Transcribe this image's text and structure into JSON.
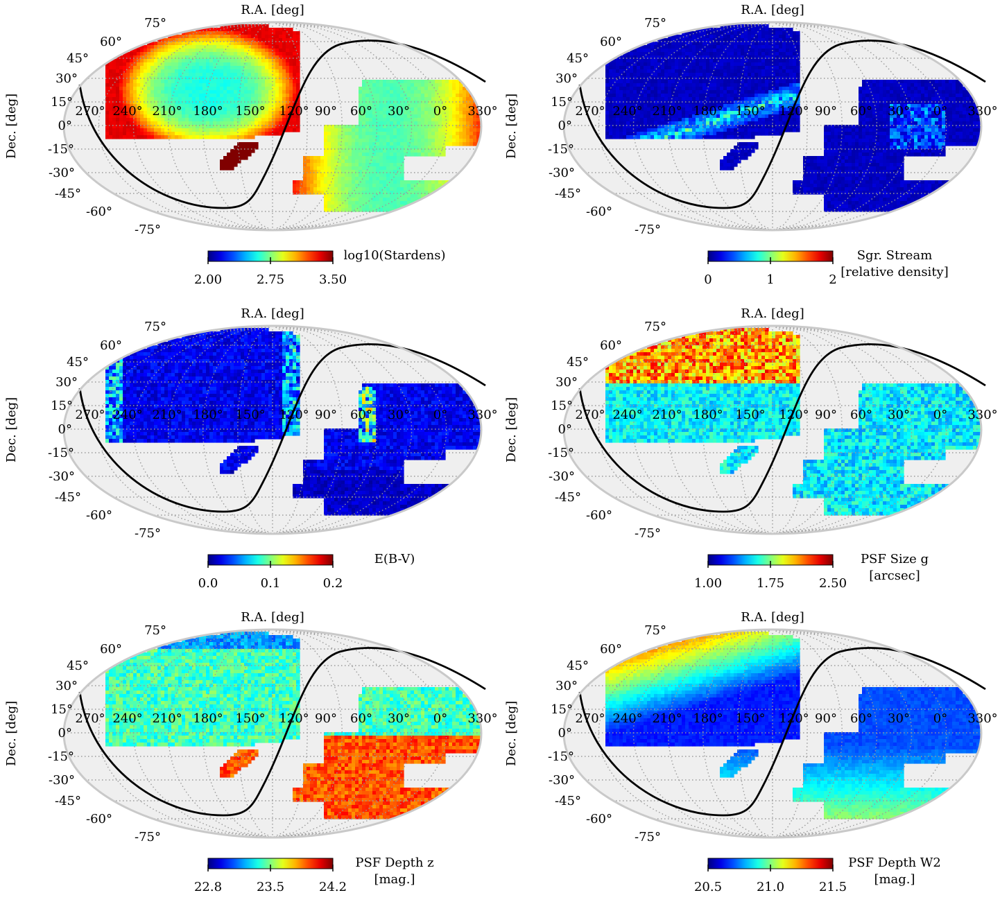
{
  "figure": {
    "colors": {
      "sphere_fill": "#efefef",
      "sphere_edge": "#c9c9c9",
      "grid": "#9a9a9a",
      "galactic_plane": "#000000"
    }
  },
  "chart_data": [
    {
      "type": "heatmap",
      "projection": "mollweide",
      "title": "R.A. [deg]",
      "xlabel": "R.A. [deg]",
      "ylabel": "Dec. [deg]",
      "ra_tick_labels": [
        "270°",
        "240°",
        "210°",
        "180°",
        "150°",
        "120°",
        "90°",
        "60°",
        "30°",
        "0°",
        "330°"
      ],
      "dec_tick_labels": [
        "75°",
        "60°",
        "45°",
        "30°",
        "15°",
        "0°",
        "-15°",
        "-30°",
        "-45°",
        "-60°",
        "-75°"
      ],
      "colorbar": {
        "label": [
          "log10(Stardens)"
        ],
        "ticks": [
          "2.00",
          "2.75",
          "3.50"
        ],
        "range": [
          2.0,
          3.5
        ],
        "colormap": "jet"
      },
      "map_pattern": "stardens"
    },
    {
      "type": "heatmap",
      "projection": "mollweide",
      "title": "R.A. [deg]",
      "xlabel": "R.A. [deg]",
      "ylabel": "Dec. [deg]",
      "ra_tick_labels": [
        "270°",
        "240°",
        "210°",
        "180°",
        "150°",
        "120°",
        "90°",
        "60°",
        "30°",
        "0°",
        "330°"
      ],
      "dec_tick_labels": [
        "75°",
        "60°",
        "45°",
        "30°",
        "15°",
        "0°",
        "-15°",
        "-30°",
        "-45°",
        "-60°",
        "-75°"
      ],
      "colorbar": {
        "label": [
          "Sgr. Stream",
          "[relative density]"
        ],
        "ticks": [
          "0",
          "1",
          "2"
        ],
        "range": [
          0,
          2
        ],
        "colormap": "jet"
      },
      "map_pattern": "sgr_stream"
    },
    {
      "type": "heatmap",
      "projection": "mollweide",
      "title": "R.A. [deg]",
      "xlabel": "R.A. [deg]",
      "ylabel": "Dec. [deg]",
      "ra_tick_labels": [
        "270°",
        "240°",
        "210°",
        "180°",
        "150°",
        "120°",
        "90°",
        "60°",
        "30°",
        "0°",
        "330°"
      ],
      "dec_tick_labels": [
        "75°",
        "60°",
        "45°",
        "30°",
        "15°",
        "0°",
        "-15°",
        "-30°",
        "-45°",
        "-60°",
        "-75°"
      ],
      "colorbar": {
        "label": [
          "E(B-V)"
        ],
        "ticks": [
          "0.0",
          "0.1",
          "0.2"
        ],
        "range": [
          0.0,
          0.2
        ],
        "colormap": "jet"
      },
      "map_pattern": "ebv"
    },
    {
      "type": "heatmap",
      "projection": "mollweide",
      "title": "R.A. [deg]",
      "xlabel": "R.A. [deg]",
      "ylabel": "Dec. [deg]",
      "ra_tick_labels": [
        "270°",
        "240°",
        "210°",
        "180°",
        "150°",
        "120°",
        "90°",
        "60°",
        "30°",
        "0°",
        "330°"
      ],
      "dec_tick_labels": [
        "75°",
        "60°",
        "45°",
        "30°",
        "15°",
        "0°",
        "-15°",
        "-30°",
        "-45°",
        "-60°",
        "-75°"
      ],
      "colorbar": {
        "label": [
          "PSF Size g",
          "[arcsec]"
        ],
        "ticks": [
          "1.00",
          "1.75",
          "2.50"
        ],
        "range": [
          1.0,
          2.5
        ],
        "colormap": "jet"
      },
      "map_pattern": "psf_size"
    },
    {
      "type": "heatmap",
      "projection": "mollweide",
      "title": "R.A. [deg]",
      "xlabel": "R.A. [deg]",
      "ylabel": "Dec. [deg]",
      "ra_tick_labels": [
        "270°",
        "240°",
        "210°",
        "180°",
        "150°",
        "120°",
        "90°",
        "60°",
        "30°",
        "0°",
        "330°"
      ],
      "dec_tick_labels": [
        "75°",
        "60°",
        "45°",
        "30°",
        "15°",
        "0°",
        "-15°",
        "-30°",
        "-45°",
        "-60°",
        "-75°"
      ],
      "colorbar": {
        "label": [
          "PSF Depth z",
          "[mag.]"
        ],
        "ticks": [
          "22.8",
          "23.5",
          "24.2"
        ],
        "range": [
          22.8,
          24.2
        ],
        "colormap": "jet"
      },
      "map_pattern": "depth_z"
    },
    {
      "type": "heatmap",
      "projection": "mollweide",
      "title": "R.A. [deg]",
      "xlabel": "R.A. [deg]",
      "ylabel": "Dec. [deg]",
      "ra_tick_labels": [
        "270°",
        "240°",
        "210°",
        "180°",
        "150°",
        "120°",
        "90°",
        "60°",
        "30°",
        "0°",
        "330°"
      ],
      "dec_tick_labels": [
        "75°",
        "60°",
        "45°",
        "30°",
        "15°",
        "0°",
        "-15°",
        "-30°",
        "-45°",
        "-60°",
        "-75°"
      ],
      "colorbar": {
        "label": [
          "PSF Depth W2",
          "[mag.]"
        ],
        "ticks": [
          "20.5",
          "21.0",
          "21.5"
        ],
        "range": [
          20.5,
          21.5
        ],
        "colormap": "jet"
      },
      "map_pattern": "depth_w2"
    }
  ]
}
